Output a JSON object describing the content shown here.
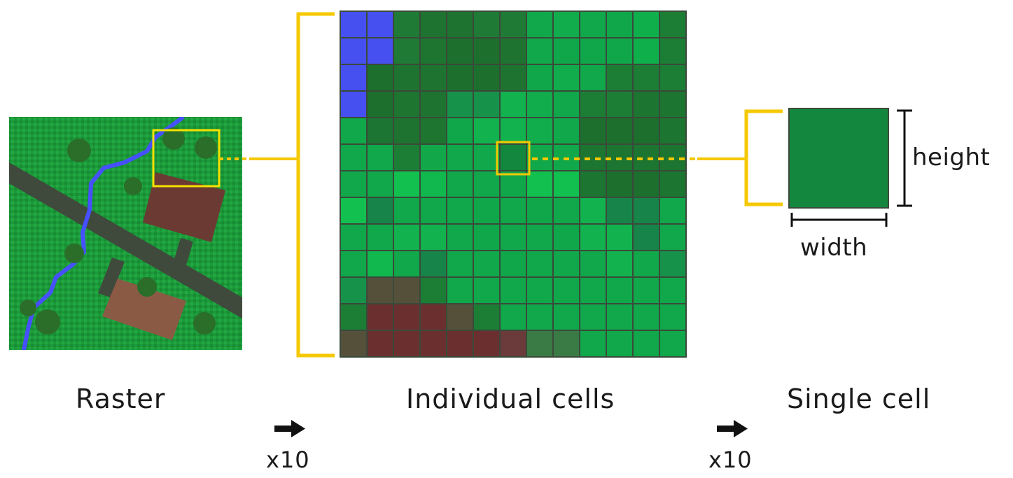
{
  "labels": {
    "raster": "Raster",
    "individual_cells": "Individual cells",
    "single_cell": "Single cell",
    "height": "height",
    "width": "width",
    "zoom_1": "x10",
    "zoom_2": "x10"
  },
  "colors": {
    "highlight": "#f5c800",
    "grass": "#1c9a3a",
    "water": "#4650ff",
    "road": "#3f4a3c",
    "building_dark": "#6b3a32",
    "building_light": "#8b5a45",
    "tree": "#2a6e2a",
    "single_cell": "#14873e",
    "grid_line": "#3a4a3a"
  },
  "grid": {
    "rows": 13,
    "cols": 13,
    "selected_cell": [
      5,
      6
    ],
    "cell_colors": [
      [
        "#4650f0",
        "#4650f0",
        "#1f7a35",
        "#1e7330",
        "#1e7330",
        "#1f7a35",
        "#1f7a35",
        "#10a84a",
        "#11ad4c",
        "#10a84a",
        "#0fa74a",
        "#0fb04c",
        "#1c7d35"
      ],
      [
        "#4650f0",
        "#4650f0",
        "#1f7a35",
        "#1e7530",
        "#1c6f2c",
        "#1c6f2c",
        "#1e7330",
        "#10a84a",
        "#0fa74a",
        "#0fa74a",
        "#0fa74a",
        "#0fb04c",
        "#1c7d35"
      ],
      [
        "#4650f0",
        "#1c6f2c",
        "#1e7330",
        "#1e7330",
        "#1c6f2c",
        "#1c6f2c",
        "#1e7330",
        "#0fa74a",
        "#11ad4c",
        "#10a84a",
        "#1c7d35",
        "#1c7d35",
        "#1c7d35"
      ],
      [
        "#4650f0",
        "#1c6f2c",
        "#1e7530",
        "#1e7330",
        "#17924a",
        "#17924a",
        "#12b24e",
        "#11ad4c",
        "#10a84a",
        "#1c7d35",
        "#1c7d35",
        "#1c7530",
        "#1c7530"
      ],
      [
        "#10a84a",
        "#1c7533",
        "#1e7330",
        "#1e7530",
        "#0fa74a",
        "#12b24e",
        "#12b24e",
        "#11ad4c",
        "#10a84a",
        "#1c6f2c",
        "#1c6f2c",
        "#1c6f2c",
        "#1c7530"
      ],
      [
        "#10a84a",
        "#10a84a",
        "#1c7d35",
        "#12a84a",
        "#10a84a",
        "#10a84a",
        "#14873e",
        "#10a84a",
        "#10a84a",
        "#1c7530",
        "#1c7530",
        "#1c7530",
        "#1c7530"
      ],
      [
        "#10a84a",
        "#10a84a",
        "#12c04f",
        "#10b84e",
        "#10a84a",
        "#10a84a",
        "#0fa74a",
        "#12c04f",
        "#12c04f",
        "#1c7530",
        "#1c6f2c",
        "#1c6f2c",
        "#1c7530"
      ],
      [
        "#12c04f",
        "#17844a",
        "#10a84a",
        "#10a84a",
        "#10a84a",
        "#0fa74a",
        "#10a84a",
        "#0fa74a",
        "#10a84a",
        "#12b24e",
        "#17844a",
        "#17844a",
        "#10a84a"
      ],
      [
        "#10a84a",
        "#10a84a",
        "#12b24e",
        "#12b24e",
        "#10a84a",
        "#0fa74a",
        "#10a84a",
        "#10a84a",
        "#0fa74a",
        "#12b24e",
        "#12b24e",
        "#17844a",
        "#10a84a"
      ],
      [
        "#10a84a",
        "#10b84e",
        "#10a84a",
        "#17844a",
        "#10a84a",
        "#10a84a",
        "#0fa74a",
        "#10a84a",
        "#10a84a",
        "#10a84a",
        "#12b24e",
        "#10a84a",
        "#17924a"
      ],
      [
        "#17924a",
        "#55503a",
        "#55503a",
        "#1c7d35",
        "#10a84a",
        "#10a84a",
        "#10a84a",
        "#10a84a",
        "#10a84a",
        "#10a84a",
        "#10a84a",
        "#10a84a",
        "#10a84a"
      ],
      [
        "#1c7d35",
        "#6b2f2f",
        "#6b2f2f",
        "#6b2f2f",
        "#55503a",
        "#1c7d35",
        "#10a84a",
        "#10a84a",
        "#10a84a",
        "#10a84a",
        "#10a84a",
        "#10a84a",
        "#10a84a"
      ],
      [
        "#55503a",
        "#6b2f2f",
        "#6b2f2f",
        "#6b2f2f",
        "#6b2f2f",
        "#6b2f2f",
        "#6b3a3a",
        "#3a7a45",
        "#3a7a45",
        "#10a84a",
        "#10a84a",
        "#10a84a",
        "#10a84a"
      ]
    ]
  }
}
